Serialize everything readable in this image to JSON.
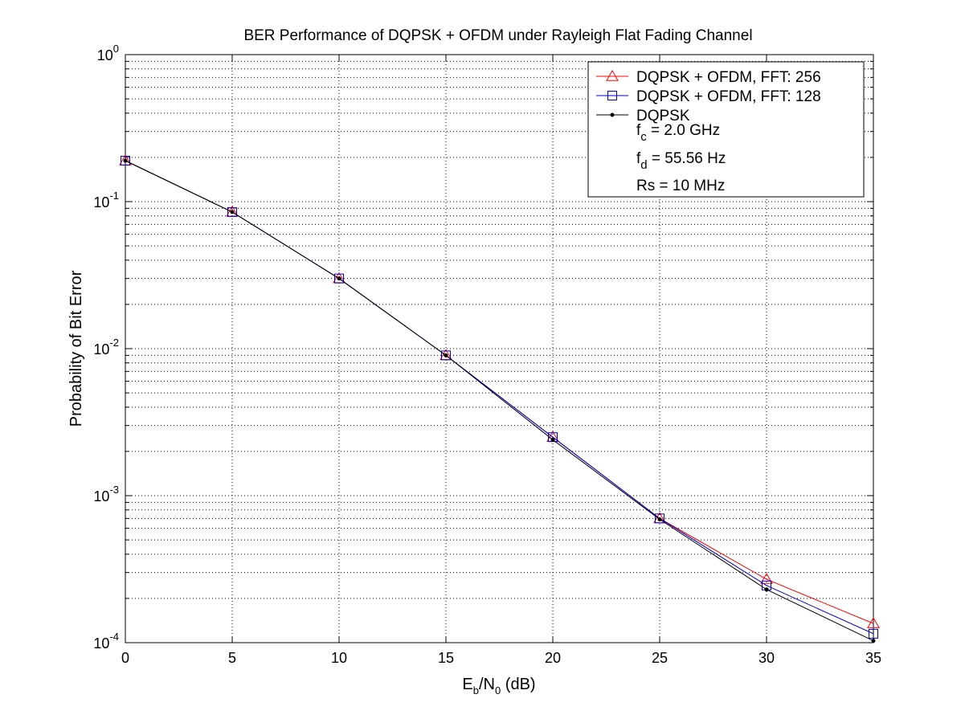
{
  "chart_data": {
    "type": "line",
    "title": "BER Performance of DQPSK + OFDM under Rayleigh Flat Fading Channel",
    "xlabel": {
      "main": "E",
      "sub1": "b",
      "mid": "/N",
      "sub2": "0",
      "tail": " (dB)"
    },
    "ylabel": "Probability of Bit Error",
    "xlim": [
      0,
      35
    ],
    "ylim": [
      0.0001,
      1
    ],
    "yscale": "log",
    "grid": true,
    "x_ticks": [
      "0",
      "5",
      "10",
      "15",
      "20",
      "25",
      "30",
      "35"
    ],
    "y_ticks": [
      {
        "base": "10",
        "exp": "-4",
        "value": 0.0001
      },
      {
        "base": "10",
        "exp": "-3",
        "value": 0.001
      },
      {
        "base": "10",
        "exp": "-2",
        "value": 0.01
      },
      {
        "base": "10",
        "exp": "-1",
        "value": 0.1
      },
      {
        "base": "10",
        "exp": "0",
        "value": 1
      }
    ],
    "x": [
      0,
      5,
      10,
      15,
      20,
      25,
      30,
      35
    ],
    "series": [
      {
        "name": "DQPSK + OFDM, FFT: 256",
        "color": "#ff0000",
        "marker": "triangle",
        "values": [
          0.19,
          0.085,
          0.03,
          0.009,
          0.0025,
          0.0007,
          0.00027,
          0.000135
        ]
      },
      {
        "name": "DQPSK + OFDM, FFT: 128",
        "color": "#0000cc",
        "marker": "square",
        "values": [
          0.19,
          0.085,
          0.03,
          0.009,
          0.0025,
          0.0007,
          0.000245,
          0.000115
        ]
      },
      {
        "name": "DQPSK",
        "color": "#000000",
        "marker": "dot",
        "values": [
          0.19,
          0.085,
          0.03,
          0.009,
          0.0024,
          0.00069,
          0.00023,
          0.000103
        ]
      }
    ],
    "legend": {
      "position": "top-right",
      "params": [
        {
          "main": "f",
          "sub": "c",
          "tail": " = 2.0 GHz"
        },
        {
          "main": "f",
          "sub": "d",
          "tail": " = 55.56 Hz"
        },
        {
          "main": "Rs = 10 MHz",
          "sub": "",
          "tail": ""
        }
      ]
    }
  }
}
